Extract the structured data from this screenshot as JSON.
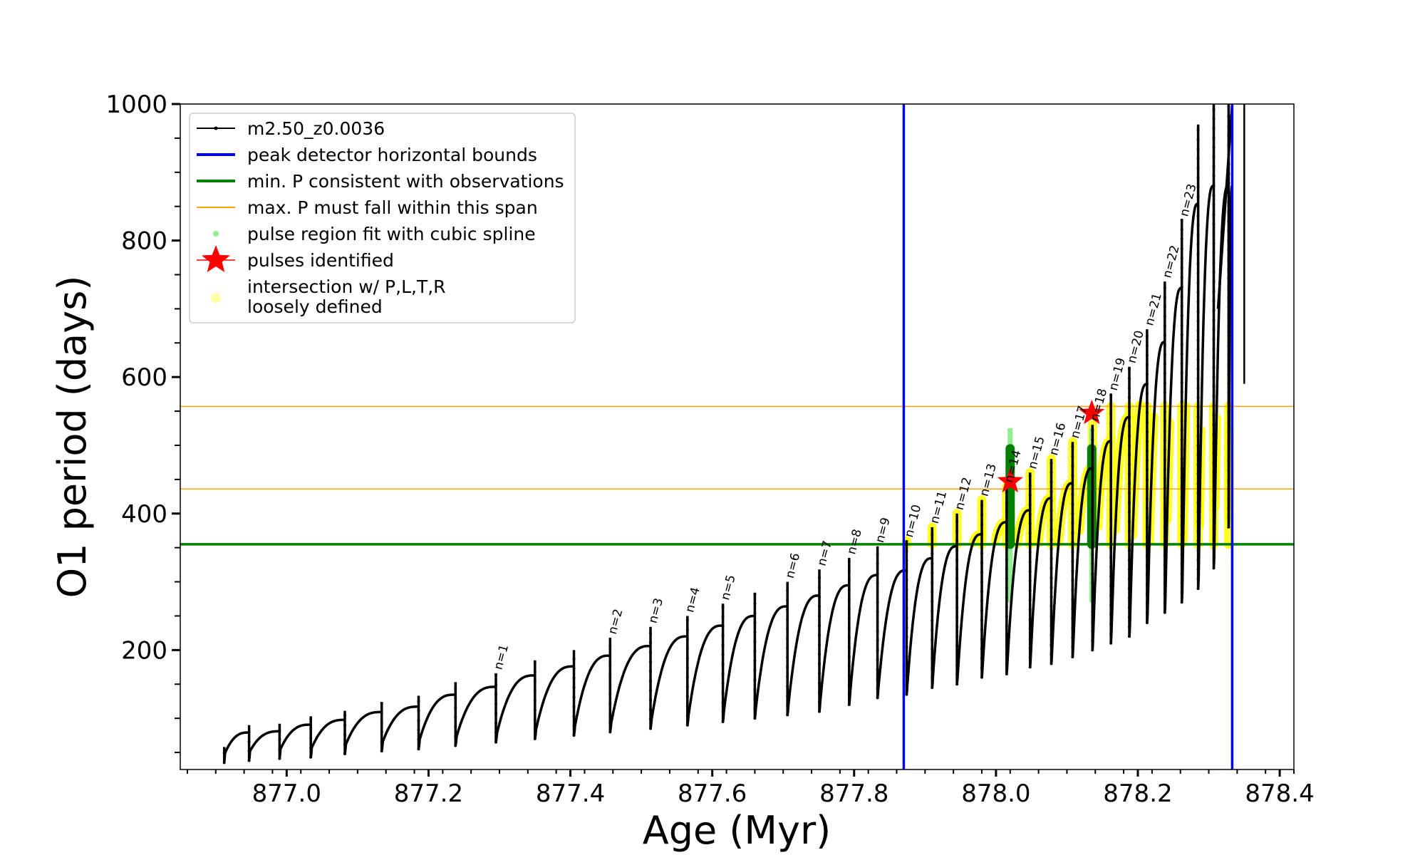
{
  "chart_data": {
    "type": "line",
    "xlabel": "Age (Myr)",
    "ylabel": "O1 period (days)",
    "xlim": [
      876.85,
      878.42
    ],
    "ylim": [
      25,
      1000
    ],
    "x_ticks": [
      877.0,
      877.2,
      877.4,
      877.6,
      877.8,
      878.0,
      878.2,
      878.4
    ],
    "x_tick_labels": [
      "877.0",
      "877.2",
      "877.4",
      "877.6",
      "877.8",
      "878.0",
      "878.2",
      "878.4"
    ],
    "y_ticks": [
      200,
      400,
      600,
      800,
      1000
    ],
    "y_tick_labels": [
      "200",
      "400",
      "600",
      "800",
      "1000"
    ],
    "grid": false,
    "legend_position": "top-left",
    "colors": {
      "model": "#000000",
      "bounds": "#0000ff",
      "min_p": "#008000",
      "max_p": "#ffa500",
      "spline": "#90ee90",
      "pulse_star": "#ff0000",
      "loose": "#ffff00"
    },
    "legend": [
      {
        "key": "model",
        "label": "m2.50_z0.0036",
        "marker": "line-dot"
      },
      {
        "key": "bounds",
        "label": "peak detector horizontal bounds",
        "marker": "line"
      },
      {
        "key": "min_p",
        "label": "min. P consistent with observations",
        "marker": "line"
      },
      {
        "key": "max_p",
        "label": "max. P must fall within this span",
        "marker": "thin-line"
      },
      {
        "key": "spline",
        "label": "pulse region fit with cubic spline",
        "marker": "dot"
      },
      {
        "key": "pulse_star",
        "label": "pulses identified",
        "marker": "star"
      },
      {
        "key": "loose",
        "label": "intersection w/ P,L,T,R",
        "label2": "loosely defined",
        "marker": "circle"
      }
    ],
    "peak_detector_bounds_x": [
      877.87,
      878.333
    ],
    "min_p_consistent": 355,
    "max_p_span": [
      436,
      557
    ],
    "pulses_identified": [
      {
        "x": 878.02,
        "y": 447
      },
      {
        "x": 878.135,
        "y": 547
      }
    ],
    "pulses": [
      {
        "x": 876.912,
        "trough": 35,
        "peak": 58
      },
      {
        "x": 876.947,
        "trough": 38,
        "peak": 90
      },
      {
        "x": 876.99,
        "trough": 41,
        "peak": 92
      },
      {
        "x": 877.034,
        "trough": 43,
        "peak": 103
      },
      {
        "x": 877.082,
        "trough": 48,
        "peak": 111
      },
      {
        "x": 877.134,
        "trough": 52,
        "peak": 124
      },
      {
        "x": 877.186,
        "trough": 55,
        "peak": 133
      },
      {
        "x": 877.238,
        "trough": 60,
        "peak": 153
      },
      {
        "x": 877.295,
        "trough": 65,
        "peak": 166,
        "label": "n=1"
      },
      {
        "x": 877.35,
        "trough": 70,
        "peak": 185
      },
      {
        "x": 877.405,
        "trough": 75,
        "peak": 200
      },
      {
        "x": 877.456,
        "trough": 80,
        "peak": 218,
        "label": "n=2"
      },
      {
        "x": 877.513,
        "trough": 85,
        "peak": 234,
        "label": "n=3"
      },
      {
        "x": 877.565,
        "trough": 90,
        "peak": 250,
        "label": "n=4"
      },
      {
        "x": 877.615,
        "trough": 95,
        "peak": 268,
        "label": "n=5"
      },
      {
        "x": 877.66,
        "trough": 100,
        "peak": 284
      },
      {
        "x": 877.706,
        "trough": 105,
        "peak": 300,
        "label": "n=6"
      },
      {
        "x": 877.751,
        "trough": 110,
        "peak": 318,
        "label": "n=7"
      },
      {
        "x": 877.793,
        "trough": 120,
        "peak": 335,
        "label": "n=8"
      },
      {
        "x": 877.833,
        "trough": 130,
        "peak": 352,
        "label": "n=9"
      },
      {
        "x": 877.874,
        "trough": 135,
        "peak": 360,
        "label": "n=10"
      },
      {
        "x": 877.91,
        "trough": 145,
        "peak": 380,
        "label": "n=11"
      },
      {
        "x": 877.945,
        "trough": 150,
        "peak": 400,
        "label": "n=12"
      },
      {
        "x": 877.98,
        "trough": 160,
        "peak": 420,
        "label": "n=13"
      },
      {
        "x": 878.015,
        "trough": 165,
        "peak": 440,
        "label": "n=14"
      },
      {
        "x": 878.048,
        "trough": 175,
        "peak": 460,
        "label": "n=15"
      },
      {
        "x": 878.078,
        "trough": 180,
        "peak": 480,
        "label": "n=16"
      },
      {
        "x": 878.108,
        "trough": 190,
        "peak": 505,
        "label": "n=17"
      },
      {
        "x": 878.136,
        "trough": 200,
        "peak": 530,
        "label": "n=18"
      },
      {
        "x": 878.162,
        "trough": 210,
        "peak": 575,
        "label": "n=19"
      },
      {
        "x": 878.188,
        "trough": 220,
        "peak": 615,
        "label": "n=20"
      },
      {
        "x": 878.213,
        "trough": 240,
        "peak": 670,
        "label": "n=21"
      },
      {
        "x": 878.238,
        "trough": 255,
        "peak": 740,
        "label": "n=22"
      },
      {
        "x": 878.262,
        "trough": 270,
        "peak": 830,
        "label": "n=23"
      },
      {
        "x": 878.285,
        "trough": 290,
        "peak": 970
      },
      {
        "x": 878.307,
        "trough": 320,
        "peak": 1000
      },
      {
        "x": 878.328,
        "trough": 380,
        "peak": 1000
      }
    ],
    "final_rise_x": [
      878.333,
      878.35
    ]
  }
}
